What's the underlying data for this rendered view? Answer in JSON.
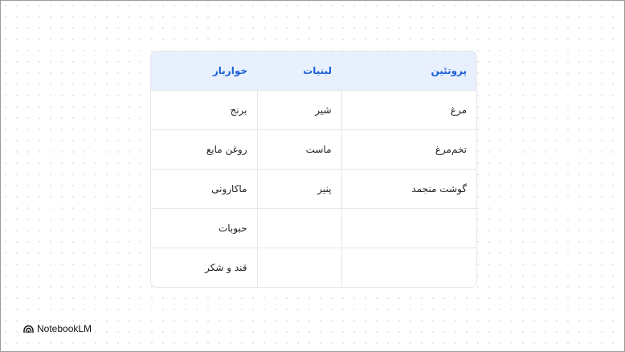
{
  "table": {
    "headers": [
      "پروتئین",
      "لبنیات",
      "خواربار"
    ],
    "rows": [
      [
        "مرغ",
        "شیر",
        "برنج"
      ],
      [
        "تخم‌مرغ",
        "ماست",
        "روغن مایع"
      ],
      [
        "گوشت منجمد",
        "پنیر",
        "ماکارونی"
      ],
      [
        "",
        "",
        "حبوبات"
      ],
      [
        "",
        "",
        "قند و شکر"
      ]
    ],
    "header_bg": "#e8f0fe",
    "header_color": "#1a5fd6"
  },
  "brand": {
    "name": "NotebookLM",
    "icon": "notebooklm-logo-icon"
  }
}
